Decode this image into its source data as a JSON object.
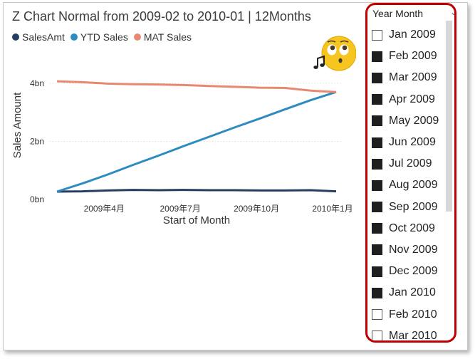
{
  "title": "Z Chart Normal from 2009-02 to 2010-01 | 12Months",
  "legend": [
    {
      "name": "SalesAmt",
      "color": "#243f63"
    },
    {
      "name": "YTD Sales",
      "color": "#2e8bc0"
    },
    {
      "name": "MAT Sales",
      "color": "#e8896f"
    }
  ],
  "chart_data": {
    "type": "line",
    "title": "Z Chart Normal from 2009-02 to 2010-01 | 12Months",
    "xlabel": "Start of Month",
    "ylabel": "Sales Amount",
    "x_ticks": [
      "2009年4月",
      "2009年7月",
      "2009年10月",
      "2010年1月"
    ],
    "y_ticks": [
      "0bn",
      "2bn",
      "4bn"
    ],
    "ylim": [
      0,
      4.3
    ],
    "grid": true,
    "legend_position": "top-left",
    "x": [
      "2009-02",
      "2009-03",
      "2009-04",
      "2009-05",
      "2009-06",
      "2009-07",
      "2009-08",
      "2009-09",
      "2009-10",
      "2009-11",
      "2009-12",
      "2010-01"
    ],
    "series": [
      {
        "name": "SalesAmt",
        "color": "#243f63",
        "values": [
          0.27,
          0.28,
          0.31,
          0.33,
          0.32,
          0.33,
          0.32,
          0.32,
          0.31,
          0.31,
          0.32,
          0.28
        ]
      },
      {
        "name": "YTD Sales",
        "color": "#2e8bc0",
        "values": [
          0.27,
          0.55,
          0.86,
          1.19,
          1.51,
          1.84,
          2.16,
          2.48,
          2.79,
          3.11,
          3.42,
          3.7
        ]
      },
      {
        "name": "MAT Sales",
        "color": "#e8896f",
        "values": [
          4.07,
          4.04,
          3.99,
          3.97,
          3.96,
          3.94,
          3.91,
          3.88,
          3.85,
          3.84,
          3.75,
          3.7
        ]
      }
    ]
  },
  "slicer": {
    "header": "Year Month",
    "chevron": "⌄",
    "items": [
      {
        "label": "Jan 2009",
        "checked": false
      },
      {
        "label": "Feb 2009",
        "checked": true
      },
      {
        "label": "Mar 2009",
        "checked": true
      },
      {
        "label": "Apr 2009",
        "checked": true
      },
      {
        "label": "May 2009",
        "checked": true
      },
      {
        "label": "Jun 2009",
        "checked": true
      },
      {
        "label": "Jul 2009",
        "checked": true
      },
      {
        "label": "Aug 2009",
        "checked": true
      },
      {
        "label": "Sep 2009",
        "checked": true
      },
      {
        "label": "Oct 2009",
        "checked": true
      },
      {
        "label": "Nov 2009",
        "checked": true
      },
      {
        "label": "Dec 2009",
        "checked": true
      },
      {
        "label": "Jan 2010",
        "checked": true
      },
      {
        "label": "Feb 2010",
        "checked": false
      },
      {
        "label": "Mar 2010",
        "checked": false
      }
    ]
  }
}
